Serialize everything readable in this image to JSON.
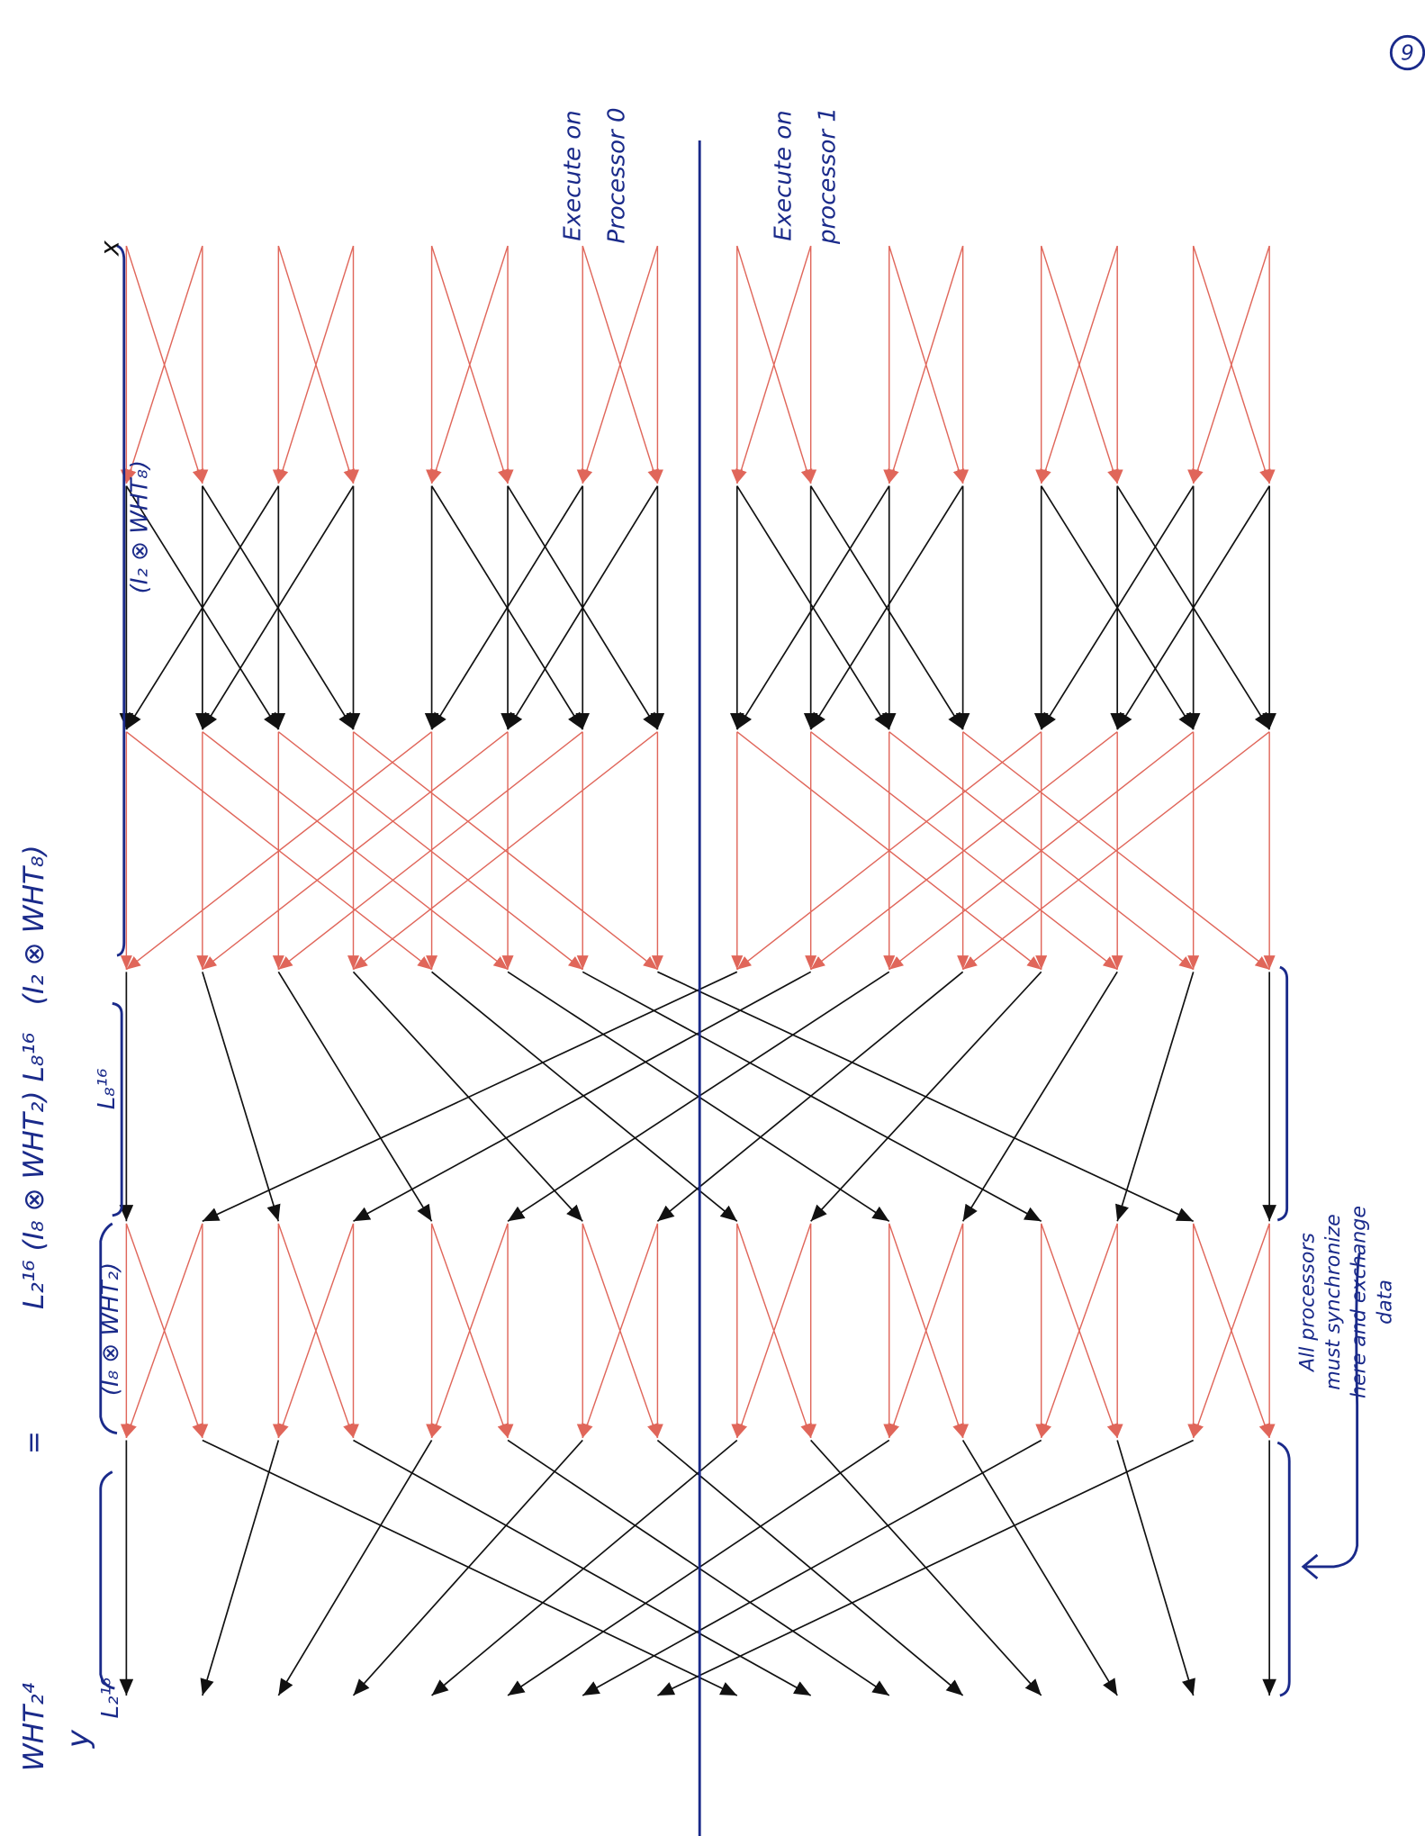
{
  "page_number": "9",
  "input_label": "x",
  "output_label": "y",
  "equation": [
    "WHT₂⁴",
    "=",
    "L₂¹⁶ (I₈ ⊗ WHT₂) L₈¹⁶",
    "(I₂ ⊗ WHT₈)"
  ],
  "stage_labels": [
    "(I₂ ⊗ WHT₈)",
    "L₈¹⁶",
    "(I₈ ⊗ WHT₂)",
    "L₂¹⁶"
  ],
  "processors": [
    {
      "lines": [
        "Execute on",
        "Processor 0"
      ]
    },
    {
      "lines": [
        "Execute on",
        "processor 1"
      ]
    }
  ],
  "sync_note": [
    "All processors",
    "must synchronize",
    "here and exchange",
    "data"
  ]
}
